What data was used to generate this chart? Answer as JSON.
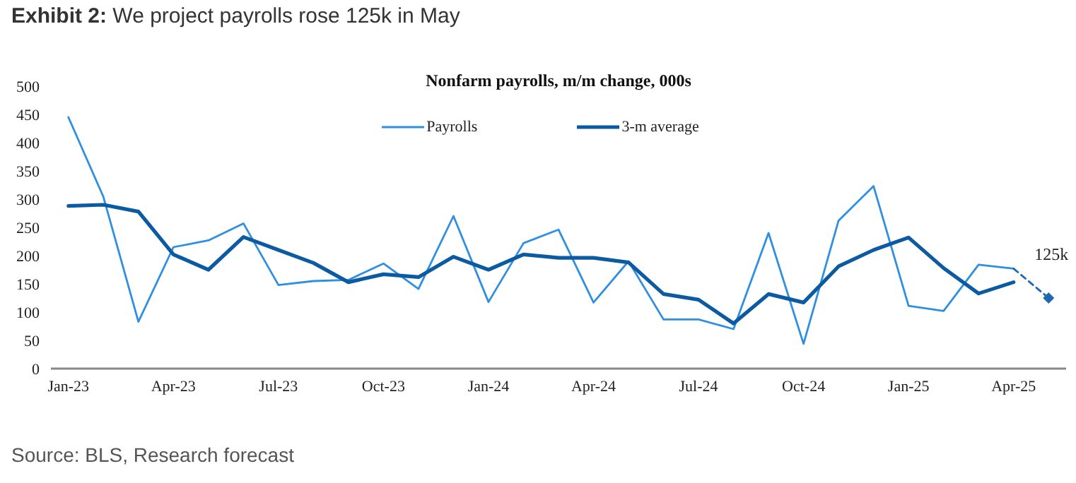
{
  "chart_data": {
    "type": "line",
    "title": "Exhibit 2: We project payrolls rose 125k in May",
    "subtitle": "Nonfarm payrolls, m/m change, 000s",
    "categories": [
      "Jan-23",
      null,
      null,
      "Apr-23",
      null,
      null,
      "Jul-23",
      null,
      null,
      "Oct-23",
      null,
      null,
      "Jan-24",
      null,
      null,
      "Apr-24",
      null,
      null,
      "Jul-24",
      null,
      null,
      "Oct-24",
      null,
      null,
      "Jan-25",
      null,
      null,
      "Apr-25",
      null
    ],
    "series": [
      {
        "name": "Payrolls",
        "color": "#2f8fe0",
        "values": [
          445,
          304,
          83,
          215,
          227,
          257,
          148,
          155,
          157,
          186,
          141,
          270,
          118,
          222,
          246,
          117,
          190,
          87,
          87,
          70,
          240,
          44,
          262,
          323,
          111,
          102,
          184,
          177,
          null
        ]
      },
      {
        "name": "3-m average",
        "color": "#0b5aa2",
        "values": [
          288,
          290,
          278,
          202,
          175,
          233,
          210,
          187,
          153,
          167,
          162,
          198,
          175,
          202,
          196,
          196,
          188,
          132,
          122,
          80,
          132,
          117,
          181,
          210,
          232,
          178,
          133,
          153,
          null
        ]
      },
      {
        "color": "#1f68b0",
        "line_style": "dashed",
        "marker": "diamond",
        "values": [
          null,
          null,
          null,
          null,
          null,
          null,
          null,
          null,
          null,
          null,
          null,
          null,
          null,
          null,
          null,
          null,
          null,
          null,
          null,
          null,
          null,
          null,
          null,
          null,
          null,
          null,
          null,
          177,
          125
        ],
        "value_labels": [
          null,
          null,
          null,
          null,
          null,
          null,
          null,
          null,
          null,
          null,
          null,
          null,
          null,
          null,
          null,
          null,
          null,
          null,
          null,
          null,
          null,
          null,
          null,
          null,
          null,
          null,
          null,
          null,
          "125k"
        ]
      }
    ],
    "ylim": [
      0,
      500
    ],
    "yticks": [
      0,
      50,
      100,
      150,
      200,
      250,
      300,
      350,
      400,
      450,
      500
    ],
    "grid": false,
    "legend": "top",
    "marker": "none",
    "line_style": "solid",
    "annotations": [
      "Source: BLS, Research forecast"
    ]
  }
}
